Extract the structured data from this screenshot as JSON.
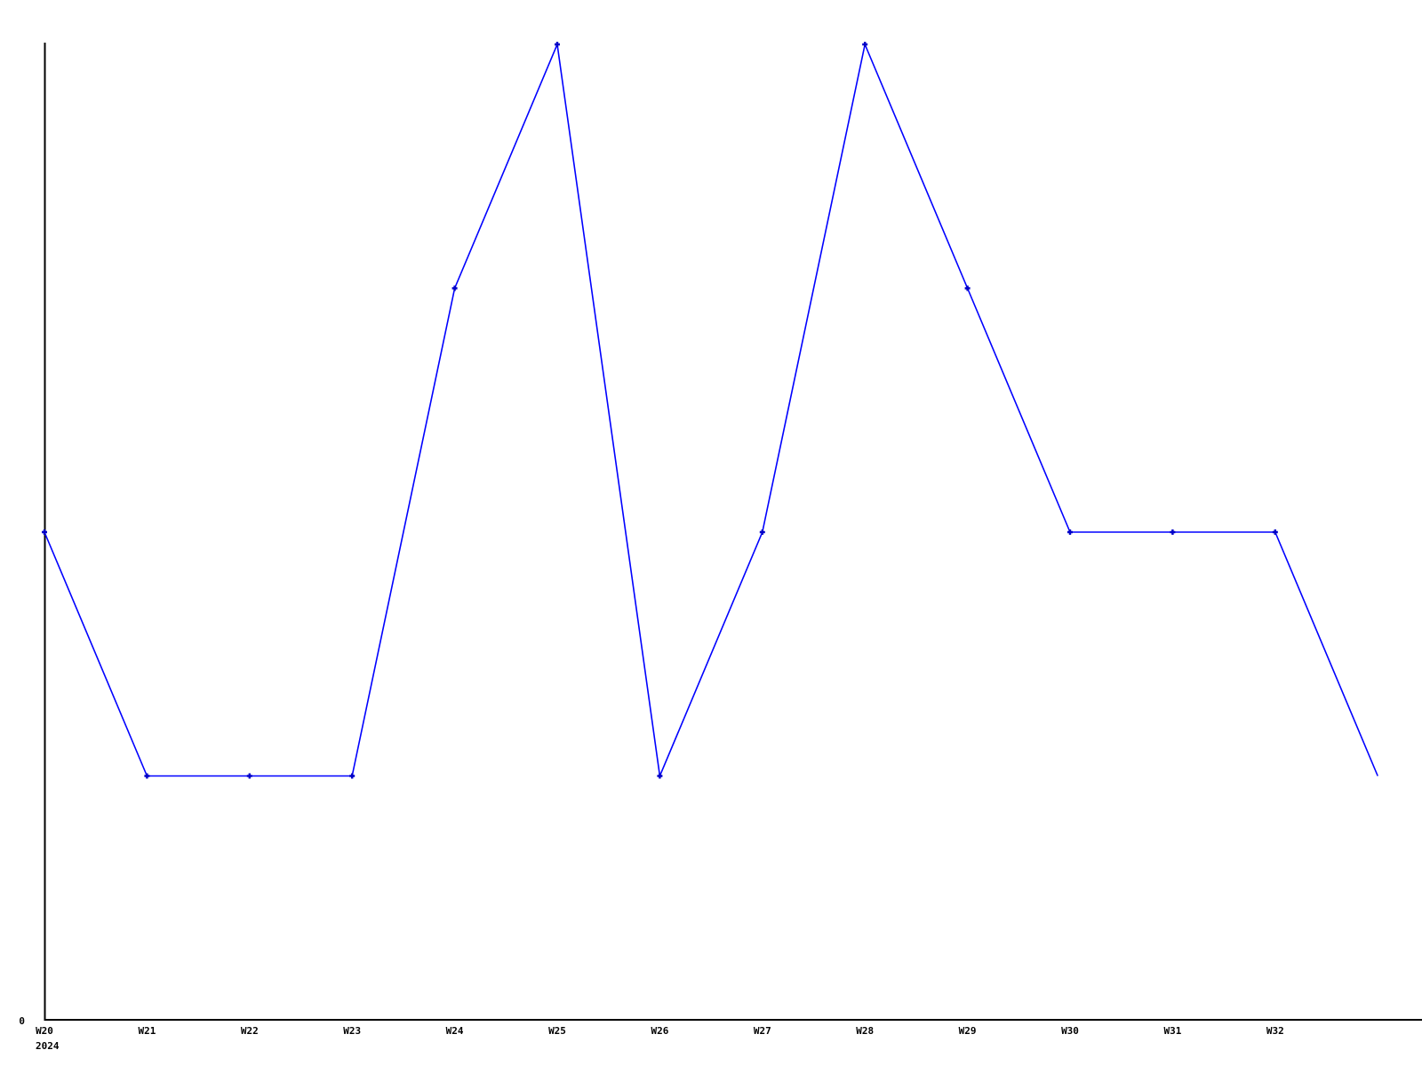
{
  "chart_data": {
    "type": "line",
    "title": "",
    "xlabel": "",
    "ylabel": "",
    "categories": [
      "W20",
      "W21",
      "W22",
      "W23",
      "W24",
      "W25",
      "W26",
      "W27",
      "W28",
      "W29",
      "W30",
      "W31",
      "W32",
      ""
    ],
    "values": [
      2,
      1,
      1,
      1,
      3,
      4,
      1,
      2,
      4,
      3,
      2,
      2,
      2,
      1
    ],
    "series_note": "single unnamed series; y values are relative units read from pixel levels (only '0' is labeled on the y-axis); levels are exact 1:2:3:4 ratio",
    "ylim": [
      0,
      4.02
    ],
    "grid": false,
    "legend": null,
    "markers": {
      "shape": "plus",
      "shown_on_first_n_points": 13
    },
    "x_axis": {
      "tick_labels": [
        "W20",
        "W21",
        "W22",
        "W23",
        "W24",
        "W25",
        "W26",
        "W27",
        "W28",
        "W29",
        "W30",
        "W31",
        "W32"
      ],
      "year_label": "2024"
    },
    "y_axis": {
      "tick_labels": [
        "0"
      ]
    },
    "colors": {
      "line": "#0000ff",
      "marker": "#0000c8",
      "axis": "#000000",
      "background": "#ffffff",
      "text": "#000000"
    }
  }
}
